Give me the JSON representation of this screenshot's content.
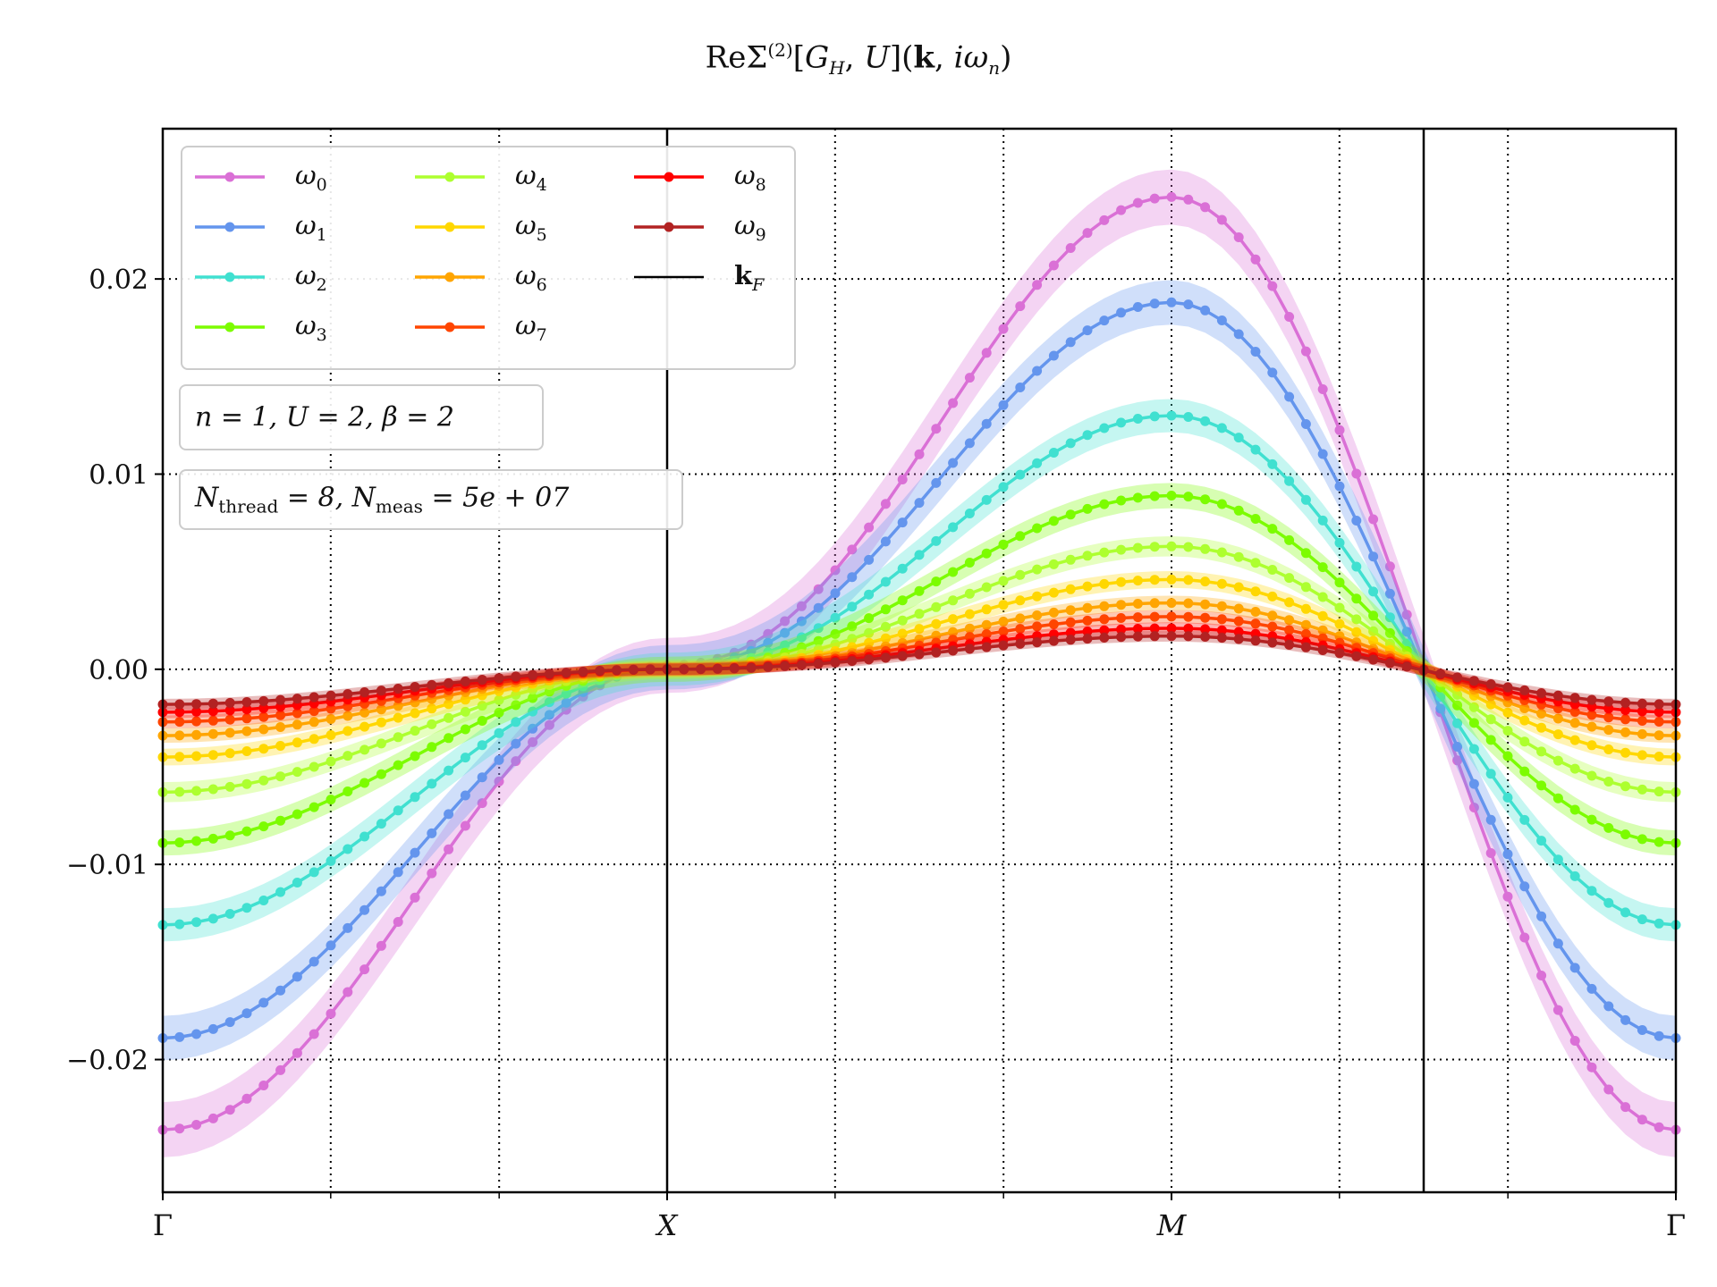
{
  "chart_data": {
    "type": "line",
    "title": "ReΣ(2)[GH, U](k, iωn)",
    "x_ticks": [
      "Γ",
      "X",
      "M",
      "Γ"
    ],
    "y_ticks": [
      "0.02",
      "0.01",
      "0.00",
      "−0.01",
      "−0.02"
    ],
    "ylim": [
      -0.0268,
      0.0277
    ],
    "grid": true,
    "legend_position": "upper-left",
    "kF_label": "kF",
    "annotations": [
      {
        "text": "n = 1, U = 2, β = 2"
      },
      {
        "text": "Nthread = 8, Nmeas = 5e + 07"
      }
    ],
    "path": "Γ → X → M → Γ",
    "points_per_segment": 30,
    "kF_position_on_M_Gamma": 0.5,
    "series": [
      {
        "name": "ω0",
        "color": "#da70d6",
        "gamma": -0.0236,
        "x_point": 0.0002,
        "m": 0.0242
      },
      {
        "name": "ω1",
        "color": "#6495ed",
        "gamma": -0.0189,
        "x_point": 0.0001,
        "m": 0.0188
      },
      {
        "name": "ω2",
        "color": "#40e0d0",
        "gamma": -0.0131,
        "x_point": 0.0,
        "m": 0.013
      },
      {
        "name": "ω3",
        "color": "#7cfc00",
        "gamma": -0.0089,
        "x_point": 0.0,
        "m": 0.0089
      },
      {
        "name": "ω4",
        "color": "#adff2f",
        "gamma": -0.0063,
        "x_point": 0.0,
        "m": 0.0063
      },
      {
        "name": "ω5",
        "color": "#ffd700",
        "gamma": -0.0045,
        "x_point": 0.0,
        "m": 0.0046
      },
      {
        "name": "ω6",
        "color": "#ffa500",
        "gamma": -0.0034,
        "x_point": 0.0,
        "m": 0.0034
      },
      {
        "name": "ω7",
        "color": "#ff4500",
        "gamma": -0.0027,
        "x_point": 0.0,
        "m": 0.0027
      },
      {
        "name": "ω8",
        "color": "#ff0000",
        "gamma": -0.0022,
        "x_point": 0.0,
        "m": 0.0021
      },
      {
        "name": "ω9",
        "color": "#b22222",
        "gamma": -0.0018,
        "x_point": 0.0,
        "m": 0.0017
      }
    ]
  }
}
